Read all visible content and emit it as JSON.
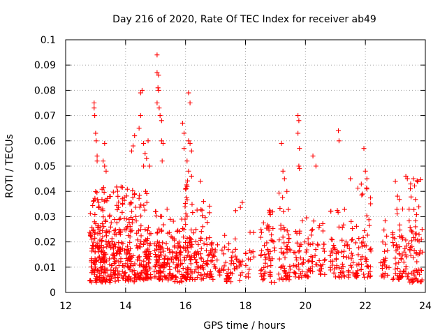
{
  "chart_data": {
    "type": "scatter",
    "title": "Day 216 of 2020, Rate Of TEC Index for receiver ab49",
    "xlabel": "GPS time / hours",
    "ylabel": "ROTI / TECUs",
    "xlim": [
      12,
      24
    ],
    "ylim": [
      0,
      0.1
    ],
    "xticks": [
      12,
      14,
      16,
      18,
      20,
      22,
      24
    ],
    "yticks": [
      0,
      0.01,
      0.02,
      0.03,
      0.04,
      0.05,
      0.06,
      0.07,
      0.08,
      0.09,
      0.1
    ],
    "xtick_labels": [
      "12",
      "14",
      "16",
      "18",
      "20",
      "22",
      "24"
    ],
    "ytick_labels": [
      "0",
      "0.01",
      "0.02",
      "0.03",
      "0.04",
      "0.05",
      "0.06",
      "0.07",
      "0.08",
      "0.09",
      "0.1"
    ],
    "grid": true,
    "marker": "plus",
    "series_color": "#ff0000",
    "series": [
      {
        "name": "ROTI",
        "clusters": [
          {
            "x_range": [
              12.8,
              13.2
            ],
            "y_base": [
              0.004,
              0.025
            ],
            "n": 110,
            "tail_max": 0.04
          },
          {
            "x_range": [
              13.2,
              13.7
            ],
            "y_base": [
              0.004,
              0.03
            ],
            "n": 120,
            "tail_max": 0.042
          },
          {
            "x_range": [
              13.7,
              14.3
            ],
            "y_base": [
              0.004,
              0.028
            ],
            "n": 130,
            "tail_max": 0.042
          },
          {
            "x_range": [
              14.3,
              14.85
            ],
            "y_base": [
              0.005,
              0.025
            ],
            "n": 110,
            "tail_max": 0.04
          },
          {
            "x_range": [
              14.95,
              15.4
            ],
            "y_base": [
              0.005,
              0.02
            ],
            "n": 90,
            "tail_max": 0.035
          },
          {
            "x_range": [
              15.4,
              15.9
            ],
            "y_base": [
              0.004,
              0.02
            ],
            "n": 80,
            "tail_max": 0.03
          },
          {
            "x_range": [
              15.9,
              16.2
            ],
            "y_base": [
              0.005,
              0.025
            ],
            "n": 70,
            "tail_max": 0.045
          },
          {
            "x_range": [
              16.2,
              16.8
            ],
            "y_base": [
              0.005,
              0.022
            ],
            "n": 70,
            "tail_max": 0.035
          },
          {
            "x_range": [
              16.8,
              17.3
            ],
            "y_base": [
              0.005,
              0.015
            ],
            "n": 35,
            "tail_max": 0.02
          },
          {
            "x_range": [
              17.3,
              17.9
            ],
            "y_base": [
              0.004,
              0.018
            ],
            "n": 50,
            "tail_max": 0.04
          },
          {
            "x_range": [
              18.0,
              18.3
            ],
            "y_base": [
              0.006,
              0.016
            ],
            "n": 15,
            "tail_max": 0.027
          },
          {
            "x_range": [
              18.5,
              19.0
            ],
            "y_base": [
              0.004,
              0.022
            ],
            "n": 60,
            "tail_max": 0.033
          },
          {
            "x_range": [
              19.1,
              19.5
            ],
            "y_base": [
              0.005,
              0.025
            ],
            "n": 55,
            "tail_max": 0.04
          },
          {
            "x_range": [
              19.6,
              20.2
            ],
            "y_base": [
              0.006,
              0.022
            ],
            "n": 55,
            "tail_max": 0.03
          },
          {
            "x_range": [
              20.2,
              20.7
            ],
            "y_base": [
              0.007,
              0.02
            ],
            "n": 35,
            "tail_max": 0.03
          },
          {
            "x_range": [
              20.8,
              21.5
            ],
            "y_base": [
              0.006,
              0.02
            ],
            "n": 60,
            "tail_max": 0.033
          },
          {
            "x_range": [
              21.5,
              22.2
            ],
            "y_base": [
              0.006,
              0.022
            ],
            "n": 70,
            "tail_max": 0.045
          },
          {
            "x_range": [
              22.5,
              22.8
            ],
            "y_base": [
              0.006,
              0.016
            ],
            "n": 25,
            "tail_max": 0.03
          },
          {
            "x_range": [
              22.9,
              23.4
            ],
            "y_base": [
              0.005,
              0.022
            ],
            "n": 60,
            "tail_max": 0.04
          },
          {
            "x_range": [
              23.4,
              23.9
            ],
            "y_base": [
              0.004,
              0.025
            ],
            "n": 70,
            "tail_max": 0.045
          }
        ],
        "spikes": [
          [
            12.95,
            0.075
          ],
          [
            12.95,
            0.073
          ],
          [
            12.97,
            0.07
          ],
          [
            13.0,
            0.063
          ],
          [
            13.02,
            0.06
          ],
          [
            13.05,
            0.054
          ],
          [
            13.05,
            0.052
          ],
          [
            13.3,
            0.059
          ],
          [
            13.25,
            0.052
          ],
          [
            13.3,
            0.05
          ],
          [
            13.35,
            0.048
          ],
          [
            14.2,
            0.056
          ],
          [
            14.25,
            0.058
          ],
          [
            14.3,
            0.062
          ],
          [
            14.45,
            0.065
          ],
          [
            14.5,
            0.07
          ],
          [
            14.5,
            0.079
          ],
          [
            14.55,
            0.08
          ],
          [
            14.6,
            0.059
          ],
          [
            14.65,
            0.055
          ],
          [
            14.7,
            0.053
          ],
          [
            14.75,
            0.06
          ],
          [
            14.8,
            0.05
          ],
          [
            14.6,
            0.05
          ],
          [
            15.05,
            0.094
          ],
          [
            15.05,
            0.087
          ],
          [
            15.1,
            0.086
          ],
          [
            15.08,
            0.081
          ],
          [
            15.1,
            0.08
          ],
          [
            15.05,
            0.075
          ],
          [
            15.12,
            0.073
          ],
          [
            15.15,
            0.07
          ],
          [
            15.2,
            0.068
          ],
          [
            15.2,
            0.06
          ],
          [
            15.25,
            0.059
          ],
          [
            15.22,
            0.052
          ],
          [
            15.9,
            0.067
          ],
          [
            15.95,
            0.063
          ],
          [
            15.95,
            0.057
          ],
          [
            16.1,
            0.079
          ],
          [
            16.15,
            0.075
          ],
          [
            16.1,
            0.06
          ],
          [
            16.15,
            0.059
          ],
          [
            16.2,
            0.056
          ],
          [
            16.05,
            0.052
          ],
          [
            16.1,
            0.048
          ],
          [
            16.2,
            0.046
          ],
          [
            16.5,
            0.044
          ],
          [
            16.6,
            0.036
          ],
          [
            19.2,
            0.059
          ],
          [
            19.25,
            0.048
          ],
          [
            19.3,
            0.045
          ],
          [
            19.75,
            0.07
          ],
          [
            19.78,
            0.068
          ],
          [
            19.75,
            0.063
          ],
          [
            19.8,
            0.057
          ],
          [
            19.78,
            0.05
          ],
          [
            19.8,
            0.049
          ],
          [
            20.25,
            0.054
          ],
          [
            20.35,
            0.05
          ],
          [
            21.1,
            0.064
          ],
          [
            21.12,
            0.06
          ],
          [
            21.5,
            0.045
          ],
          [
            21.95,
            0.057
          ],
          [
            22.0,
            0.048
          ],
          [
            22.05,
            0.045
          ],
          [
            23.0,
            0.044
          ],
          [
            23.35,
            0.046
          ],
          [
            23.4,
            0.045
          ],
          [
            23.5,
            0.041
          ],
          [
            23.6,
            0.045
          ]
        ]
      }
    ]
  }
}
